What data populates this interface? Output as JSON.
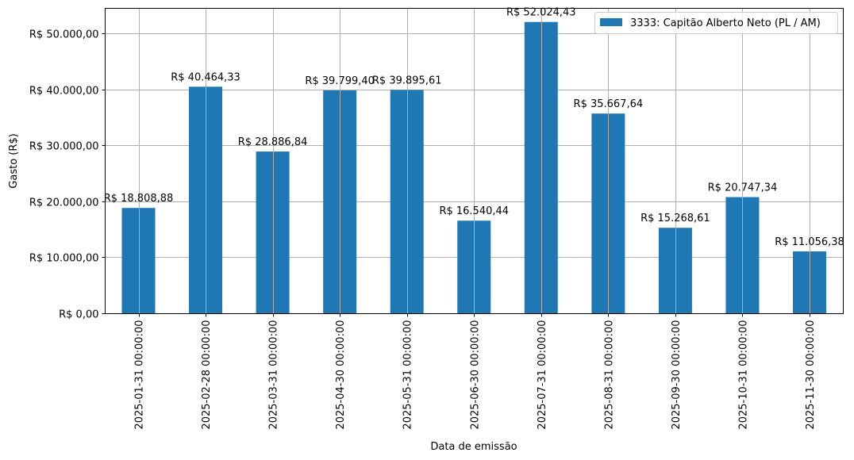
{
  "chart_data": {
    "type": "bar",
    "title": "",
    "xlabel": "Data de emissão",
    "ylabel": "Gasto (R$)",
    "ylim": [
      0,
      54500
    ],
    "grid": true,
    "legend_position": "upper right",
    "categories": [
      "2025-01-31 00:00:00",
      "2025-02-28 00:00:00",
      "2025-03-31 00:00:00",
      "2025-04-30 00:00:00",
      "2025-05-31 00:00:00",
      "2025-06-30 00:00:00",
      "2025-07-31 00:00:00",
      "2025-08-31 00:00:00",
      "2025-09-30 00:00:00",
      "2025-10-31 00:00:00",
      "2025-11-30 00:00:00"
    ],
    "series": [
      {
        "name": "3333: Capitão Alberto Neto (PL / AM)",
        "color": "#1f77b4",
        "values": [
          18808.88,
          40464.33,
          28886.84,
          39799.4,
          39895.61,
          16540.44,
          52024.43,
          35667.64,
          15268.61,
          20747.34,
          11056.38
        ]
      }
    ],
    "bar_labels": [
      "R$ 18.808,88",
      "R$ 40.464,33",
      "R$ 28.886,84",
      "R$ 39.799,40",
      "R$ 39.895,61",
      "R$ 16.540,44",
      "R$ 52.024,43",
      "R$ 35.667,64",
      "R$ 15.268,61",
      "R$ 20.747,34",
      "R$ 11.056,38"
    ],
    "yticks": [
      {
        "value": 0,
        "label": "R$ 0,00"
      },
      {
        "value": 10000,
        "label": "R$ 10.000,00"
      },
      {
        "value": 20000,
        "label": "R$ 20.000,00"
      },
      {
        "value": 30000,
        "label": "R$ 30.000,00"
      },
      {
        "value": 40000,
        "label": "R$ 40.000,00"
      },
      {
        "value": 50000,
        "label": "R$ 50.000,00"
      }
    ]
  },
  "legend": {
    "label": "3333: Capitão Alberto Neto (PL / AM)"
  },
  "axes": {
    "xlabel": "Data de emissão",
    "ylabel": "Gasto (R$)"
  }
}
